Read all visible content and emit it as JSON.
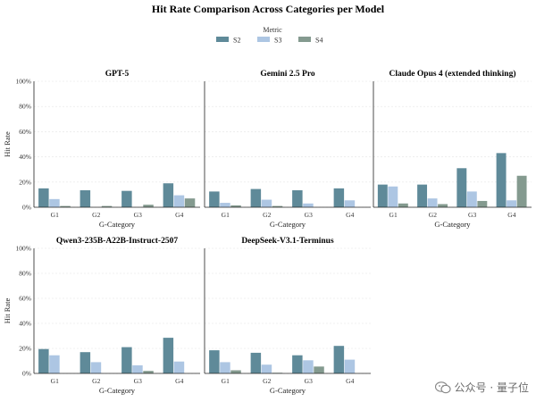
{
  "figure_title": "Hit Rate Comparison Across Categories per Model",
  "legend": {
    "title": "Metric",
    "items": [
      {
        "label": "S2",
        "color": "#5f8a99"
      },
      {
        "label": "S3",
        "color": "#adc6e3"
      },
      {
        "label": "S4",
        "color": "#849a8f"
      }
    ]
  },
  "watermark": {
    "text": "公众号 · 量子位"
  },
  "chart_data": [
    {
      "type": "bar",
      "title": "GPT-5",
      "xlabel": "G-Category",
      "ylabel": "Hit Rate",
      "categories": [
        "G1",
        "G2",
        "G3",
        "G4"
      ],
      "ylim": [
        0,
        100
      ],
      "yticks": [
        "0%",
        "20%",
        "40%",
        "60%",
        "80%",
        "100%"
      ],
      "series": [
        {
          "name": "S2",
          "values": [
            15,
            13.5,
            13,
            19
          ]
        },
        {
          "name": "S3",
          "values": [
            6.5,
            0,
            0,
            9.5
          ]
        },
        {
          "name": "S4",
          "values": [
            1,
            1,
            2,
            7
          ]
        }
      ]
    },
    {
      "type": "bar",
      "title": "Gemini 2.5 Pro",
      "xlabel": "G-Category",
      "ylabel": "Hit Rate",
      "categories": [
        "G1",
        "G2",
        "G3",
        "G4"
      ],
      "ylim": [
        0,
        100
      ],
      "yticks": [
        "0%",
        "20%",
        "40%",
        "60%",
        "80%",
        "100%"
      ],
      "series": [
        {
          "name": "S2",
          "values": [
            12.5,
            14.5,
            13.5,
            15
          ]
        },
        {
          "name": "S3",
          "values": [
            3.5,
            6,
            3,
            5.5
          ]
        },
        {
          "name": "S4",
          "values": [
            1.5,
            1,
            0,
            0
          ]
        }
      ]
    },
    {
      "type": "bar",
      "title": "Claude Opus 4 (extended thinking)",
      "xlabel": "G-Category",
      "ylabel": "Hit Rate",
      "categories": [
        "G1",
        "G2",
        "G3",
        "G4"
      ],
      "ylim": [
        0,
        100
      ],
      "yticks": [
        "0%",
        "20%",
        "40%",
        "60%",
        "80%",
        "100%"
      ],
      "series": [
        {
          "name": "S2",
          "values": [
            18,
            18,
            31,
            43
          ]
        },
        {
          "name": "S3",
          "values": [
            16.5,
            7,
            12.5,
            5.5
          ]
        },
        {
          "name": "S4",
          "values": [
            3,
            2.5,
            5,
            25
          ]
        }
      ]
    },
    {
      "type": "bar",
      "title": "Qwen3-235B-A22B-Instruct-2507",
      "xlabel": "G-Category",
      "ylabel": "Hit Rate",
      "categories": [
        "G1",
        "G2",
        "G3",
        "G4"
      ],
      "ylim": [
        0,
        100
      ],
      "yticks": [
        "0%",
        "20%",
        "40%",
        "60%",
        "80%",
        "100%"
      ],
      "series": [
        {
          "name": "S2",
          "values": [
            19.5,
            17,
            21,
            28.5
          ]
        },
        {
          "name": "S3",
          "values": [
            14.5,
            9,
            6.5,
            9.5
          ]
        },
        {
          "name": "S4",
          "values": [
            0,
            0,
            2,
            0
          ]
        }
      ]
    },
    {
      "type": "bar",
      "title": "DeepSeek-V3.1-Terminus",
      "xlabel": "G-Category",
      "ylabel": "Hit Rate",
      "categories": [
        "G1",
        "G2",
        "G3",
        "G4"
      ],
      "ylim": [
        0,
        100
      ],
      "yticks": [
        "0%",
        "20%",
        "40%",
        "60%",
        "80%",
        "100%"
      ],
      "series": [
        {
          "name": "S2",
          "values": [
            18.5,
            16.5,
            14.5,
            22
          ]
        },
        {
          "name": "S3",
          "values": [
            9,
            7,
            10.5,
            11
          ]
        },
        {
          "name": "S4",
          "values": [
            2.5,
            0.5,
            5.5,
            0
          ]
        }
      ]
    }
  ]
}
